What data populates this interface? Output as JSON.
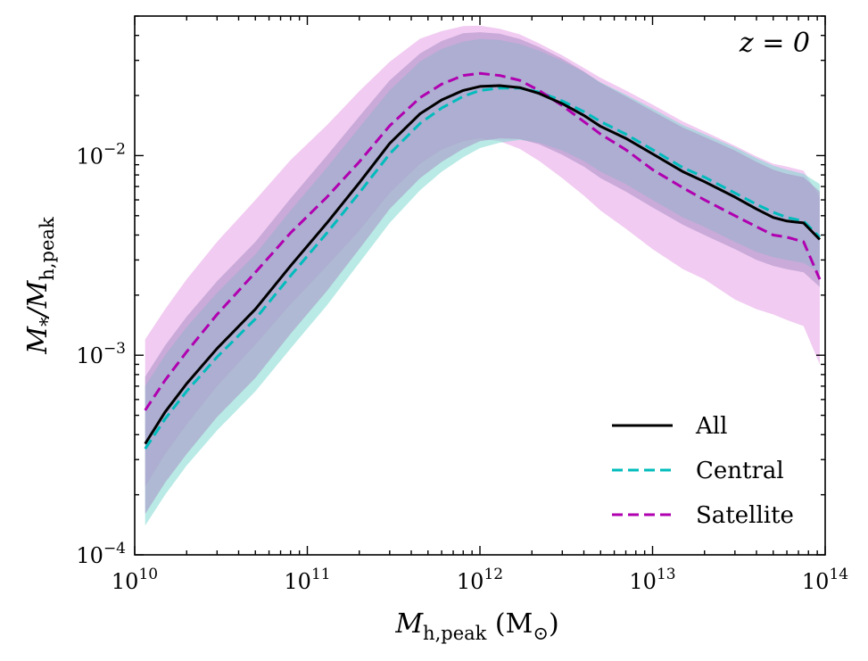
{
  "chart_data": {
    "type": "line",
    "log_x": true,
    "log_y": true,
    "xlim": [
      10000000000.0,
      100000000000000.0
    ],
    "ylim": [
      0.0001,
      0.05
    ],
    "xlabel": {
      "main": "M",
      "sub": "h,peak",
      "unit": " (M",
      "unit_sub": "⊙",
      "unit_close": ")"
    },
    "ylabel": {
      "main": "M",
      "sub1": "*",
      "mid": "/M",
      "sub2": "h,peak"
    },
    "annotation": "z = 0",
    "x_ticks": [
      {
        "value": 10000000000.0,
        "base": "10",
        "exp": "10"
      },
      {
        "value": 100000000000.0,
        "base": "10",
        "exp": "11"
      },
      {
        "value": 1000000000000.0,
        "base": "10",
        "exp": "12"
      },
      {
        "value": 10000000000000.0,
        "base": "10",
        "exp": "13"
      },
      {
        "value": 100000000000000.0,
        "base": "10",
        "exp": "14"
      }
    ],
    "y_ticks": [
      {
        "value": 0.0001,
        "base": "10",
        "exp": "−4"
      },
      {
        "value": 0.001,
        "base": "10",
        "exp": "−3"
      },
      {
        "value": 0.01,
        "base": "10",
        "exp": "−2"
      }
    ],
    "legend_position": "bottom-right",
    "series": [
      {
        "name": "All",
        "color": "#000000",
        "style": "solid",
        "band_color": "#a88fc5",
        "x": [
          11500000000.0,
          15000000000.0,
          20000000000.0,
          30000000000.0,
          50000000000.0,
          80000000000.0,
          130000000000.0,
          200000000000.0,
          300000000000.0,
          450000000000.0,
          600000000000.0,
          800000000000.0,
          1000000000000.0,
          1300000000000.0,
          1700000000000.0,
          2200000000000.0,
          3000000000000.0,
          4000000000000.0,
          5000000000000.0,
          7000000000000.0,
          10000000000000.0,
          15000000000000.0,
          20000000000000.0,
          30000000000000.0,
          40000000000000.0,
          50000000000000.0,
          60000000000000.0,
          75000000000000.0,
          93000000000000.0
        ],
        "y": [
          0.00036,
          0.00052,
          0.00072,
          0.00108,
          0.0017,
          0.0028,
          0.0046,
          0.0073,
          0.0115,
          0.0162,
          0.019,
          0.0212,
          0.0222,
          0.0224,
          0.0219,
          0.0205,
          0.0182,
          0.0159,
          0.014,
          0.0122,
          0.0102,
          0.0083,
          0.0074,
          0.0062,
          0.0054,
          0.0049,
          0.0047,
          0.0046,
          0.0038
        ],
        "band_lo": [
          0.00016,
          0.00023,
          0.00032,
          0.00049,
          0.00077,
          0.00128,
          0.0021,
          0.0034,
          0.0054,
          0.0077,
          0.0093,
          0.0108,
          0.0118,
          0.0122,
          0.0121,
          0.0114,
          0.0101,
          0.0088,
          0.0077,
          0.0066,
          0.0055,
          0.0045,
          0.004,
          0.0034,
          0.003,
          0.0028,
          0.0027,
          0.0026,
          0.0022
        ],
        "band_hi": [
          0.00078,
          0.00112,
          0.00156,
          0.00235,
          0.0037,
          0.0061,
          0.01,
          0.0157,
          0.0238,
          0.0325,
          0.0375,
          0.041,
          0.0415,
          0.0408,
          0.0384,
          0.035,
          0.0306,
          0.0264,
          0.0231,
          0.0198,
          0.0167,
          0.0138,
          0.0124,
          0.0106,
          0.0093,
          0.0085,
          0.0081,
          0.0078,
          0.0066
        ]
      },
      {
        "name": "Central",
        "color": "#00bcbc",
        "style": "dashed",
        "band_color": "#7fd8d0",
        "x": [
          11500000000.0,
          15000000000.0,
          20000000000.0,
          30000000000.0,
          50000000000.0,
          80000000000.0,
          130000000000.0,
          200000000000.0,
          300000000000.0,
          450000000000.0,
          600000000000.0,
          800000000000.0,
          1000000000000.0,
          1300000000000.0,
          1700000000000.0,
          2200000000000.0,
          3000000000000.0,
          4000000000000.0,
          5000000000000.0,
          7000000000000.0,
          10000000000000.0,
          15000000000000.0,
          20000000000000.0,
          30000000000000.0,
          40000000000000.0,
          50000000000000.0,
          60000000000000.0,
          75000000000000.0,
          93000000000000.0
        ],
        "y": [
          0.00034,
          0.00048,
          0.00066,
          0.00098,
          0.00152,
          0.0025,
          0.0041,
          0.0065,
          0.0102,
          0.0145,
          0.0173,
          0.0198,
          0.0212,
          0.0218,
          0.0218,
          0.0208,
          0.0188,
          0.0166,
          0.0148,
          0.0128,
          0.0107,
          0.0087,
          0.0078,
          0.0065,
          0.0057,
          0.0052,
          0.0049,
          0.0047,
          0.0039
        ],
        "band_lo": [
          0.00014,
          0.0002,
          0.00028,
          0.00042,
          0.00066,
          0.00108,
          0.00178,
          0.0029,
          0.0046,
          0.0067,
          0.0083,
          0.0098,
          0.0109,
          0.0116,
          0.012,
          0.0116,
          0.0106,
          0.0094,
          0.0083,
          0.0072,
          0.006,
          0.0049,
          0.0044,
          0.0037,
          0.0033,
          0.0031,
          0.003,
          0.0029,
          0.0026
        ],
        "band_hi": [
          0.0007,
          0.001,
          0.00138,
          0.00205,
          0.0032,
          0.0053,
          0.0087,
          0.0138,
          0.0212,
          0.0296,
          0.0342,
          0.0372,
          0.0384,
          0.0379,
          0.0362,
          0.0335,
          0.0298,
          0.0262,
          0.0233,
          0.0202,
          0.0172,
          0.0142,
          0.0128,
          0.011,
          0.0097,
          0.0089,
          0.0085,
          0.0081,
          0.0072
        ]
      },
      {
        "name": "Satellite",
        "color": "#b000b0",
        "style": "dashed",
        "band_color": "#e8a8e8",
        "x": [
          11500000000.0,
          15000000000.0,
          20000000000.0,
          30000000000.0,
          50000000000.0,
          80000000000.0,
          130000000000.0,
          200000000000.0,
          300000000000.0,
          450000000000.0,
          600000000000.0,
          800000000000.0,
          1000000000000.0,
          1300000000000.0,
          1700000000000.0,
          2200000000000.0,
          3000000000000.0,
          4000000000000.0,
          5000000000000.0,
          7000000000000.0,
          10000000000000.0,
          15000000000000.0,
          20000000000000.0,
          30000000000000.0,
          40000000000000.0,
          50000000000000.0,
          60000000000000.0,
          75000000000000.0,
          93000000000000.0
        ],
        "y": [
          0.00053,
          0.00075,
          0.00104,
          0.0016,
          0.0026,
          0.0041,
          0.0062,
          0.0093,
          0.0141,
          0.0195,
          0.0228,
          0.0252,
          0.0258,
          0.0252,
          0.0238,
          0.0212,
          0.0178,
          0.0148,
          0.0128,
          0.0107,
          0.0085,
          0.0069,
          0.006,
          0.005,
          0.0044,
          0.004,
          0.0039,
          0.0037,
          0.0024
        ],
        "band_lo": [
          0.00022,
          0.00032,
          0.00045,
          0.0007,
          0.00113,
          0.0018,
          0.0028,
          0.0042,
          0.0065,
          0.0091,
          0.0107,
          0.0118,
          0.0122,
          0.0118,
          0.0108,
          0.0094,
          0.0077,
          0.0063,
          0.0053,
          0.0043,
          0.0034,
          0.0027,
          0.0024,
          0.0019,
          0.0017,
          0.0016,
          0.0015,
          0.0014,
          0.0009
        ],
        "band_hi": [
          0.0012,
          0.0017,
          0.0024,
          0.0037,
          0.006,
          0.0095,
          0.0142,
          0.021,
          0.0295,
          0.0385,
          0.042,
          0.0445,
          0.0448,
          0.0432,
          0.0405,
          0.0365,
          0.0318,
          0.0275,
          0.0245,
          0.0212,
          0.018,
          0.0148,
          0.0132,
          0.0112,
          0.0099,
          0.0091,
          0.0088,
          0.0084,
          0.0062
        ]
      }
    ]
  }
}
